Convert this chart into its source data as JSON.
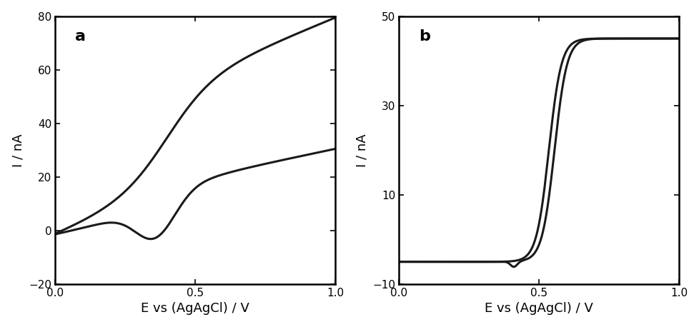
{
  "panel_a": {
    "label": "a",
    "xlabel": "E vs (AgAgCl) / V",
    "ylabel": "I / nA",
    "xlim": [
      0,
      1
    ],
    "ylim": [
      -20,
      80
    ],
    "yticks": [
      -20,
      0,
      20,
      40,
      60,
      80
    ],
    "xticks": [
      0,
      0.5,
      1
    ]
  },
  "panel_b": {
    "label": "b",
    "xlabel": "E vs (AgAgCl) / V",
    "ylabel": "I / nA",
    "xlim": [
      0,
      1
    ],
    "ylim": [
      -10,
      50
    ],
    "yticks": [
      -10,
      10,
      30,
      50
    ],
    "xticks": [
      0,
      0.5,
      1
    ]
  },
  "line_color": "#1a1a1a",
  "line_width": 2.2,
  "background_color": "#ffffff",
  "label_fontsize": 13,
  "tick_fontsize": 11,
  "panel_label_fontsize": 16
}
